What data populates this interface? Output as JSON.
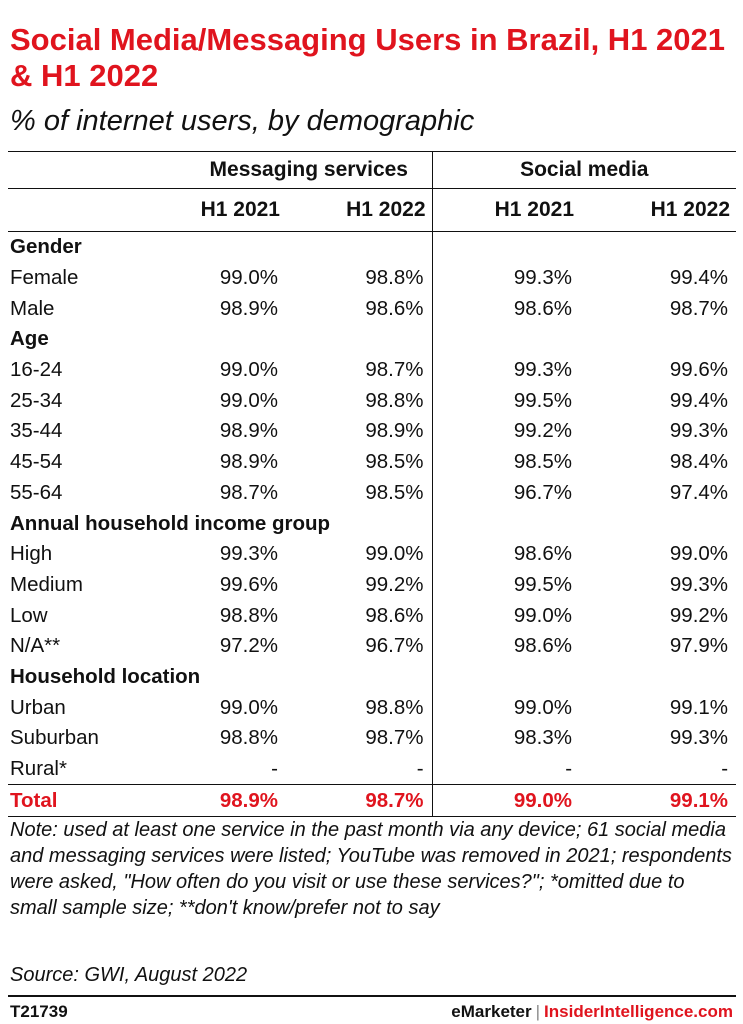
{
  "chart_data": {
    "type": "table",
    "title": "Social Media/Messaging Users in Brazil, H1 2021 & H1 2022",
    "subtitle": "% of internet users, by demographic",
    "column_groups": [
      "Messaging services",
      "Social media"
    ],
    "columns": [
      "H1 2021",
      "H1 2022",
      "H1 2021",
      "H1 2022"
    ],
    "sections": [
      {
        "name": "Gender",
        "rows": [
          {
            "label": "Female",
            "values": [
              "99.0%",
              "98.8%",
              "99.3%",
              "99.4%"
            ]
          },
          {
            "label": "Male",
            "values": [
              "98.9%",
              "98.6%",
              "98.6%",
              "98.7%"
            ]
          }
        ]
      },
      {
        "name": "Age",
        "rows": [
          {
            "label": "16-24",
            "values": [
              "99.0%",
              "98.7%",
              "99.3%",
              "99.6%"
            ]
          },
          {
            "label": "25-34",
            "values": [
              "99.0%",
              "98.8%",
              "99.5%",
              "99.4%"
            ]
          },
          {
            "label": "35-44",
            "values": [
              "98.9%",
              "98.9%",
              "99.2%",
              "99.3%"
            ]
          },
          {
            "label": "45-54",
            "values": [
              "98.9%",
              "98.5%",
              "98.5%",
              "98.4%"
            ]
          },
          {
            "label": "55-64",
            "values": [
              "98.7%",
              "98.5%",
              "96.7%",
              "97.4%"
            ]
          }
        ]
      },
      {
        "name": "Annual household income group",
        "rows": [
          {
            "label": "High",
            "values": [
              "99.3%",
              "99.0%",
              "98.6%",
              "99.0%"
            ]
          },
          {
            "label": "Medium",
            "values": [
              "99.6%",
              "99.2%",
              "99.5%",
              "99.3%"
            ]
          },
          {
            "label": "Low",
            "values": [
              "98.8%",
              "98.6%",
              "99.0%",
              "99.2%"
            ]
          },
          {
            "label": "N/A**",
            "values": [
              "97.2%",
              "96.7%",
              "98.6%",
              "97.9%"
            ]
          }
        ]
      },
      {
        "name": "Household location",
        "rows": [
          {
            "label": "Urban",
            "values": [
              "99.0%",
              "98.8%",
              "99.0%",
              "99.1%"
            ]
          },
          {
            "label": "Suburban",
            "values": [
              "98.8%",
              "98.7%",
              "98.3%",
              "99.3%"
            ]
          },
          {
            "label": "Rural*",
            "values": [
              "-",
              "-",
              "-",
              "-"
            ]
          }
        ]
      }
    ],
    "total": {
      "label": "Total",
      "values": [
        "98.9%",
        "98.7%",
        "99.0%",
        "99.1%"
      ]
    }
  },
  "note": "Note: used at least one service in the past month via any device; 61 social media and messaging services were listed; YouTube was removed in 2021; respondents were asked, \"How often do you visit or use these services?\"; *omitted due to small sample size; **don't know/prefer not to say",
  "source": "Source: GWI, August 2022",
  "footer": {
    "id": "T21739",
    "brand": "eMarketer",
    "divider": "|",
    "brand2": "InsiderIntelligence.com"
  },
  "colors": {
    "accent": "#e0141e",
    "text": "#111111"
  }
}
